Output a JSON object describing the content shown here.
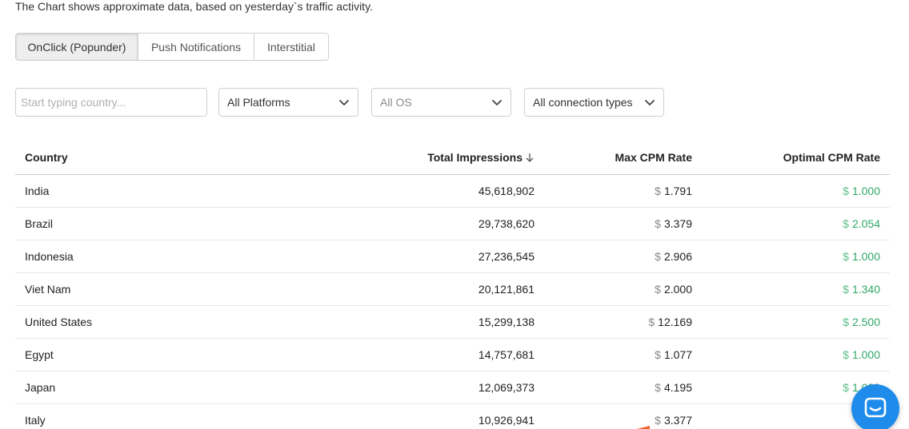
{
  "note": "The Chart shows approximate data, based on yesterday`s traffic activity.",
  "tabs": [
    {
      "label": "OnClick (Popunder)",
      "active": true
    },
    {
      "label": "Push Notifications",
      "active": false
    },
    {
      "label": "Interstitial",
      "active": false
    }
  ],
  "filters": {
    "country_placeholder": "Start typing country...",
    "platform": "All Platforms",
    "os": "All OS",
    "connection": "All connection types"
  },
  "table": {
    "headers": {
      "country": "Country",
      "impressions": "Total Impressions",
      "max_cpm": "Max CPM Rate",
      "optimal_cpm": "Optimal CPM Rate"
    },
    "currency": "$",
    "rows": [
      {
        "country": "India",
        "impressions": "45,618,902",
        "max_cpm": "1.791",
        "optimal_cpm": "1.000"
      },
      {
        "country": "Brazil",
        "impressions": "29,738,620",
        "max_cpm": "3.379",
        "optimal_cpm": "2.054"
      },
      {
        "country": "Indonesia",
        "impressions": "27,236,545",
        "max_cpm": "2.906",
        "optimal_cpm": "1.000"
      },
      {
        "country": "Viet Nam",
        "impressions": "20,121,861",
        "max_cpm": "2.000",
        "optimal_cpm": "1.340"
      },
      {
        "country": "United States",
        "impressions": "15,299,138",
        "max_cpm": "12.169",
        "optimal_cpm": "2.500"
      },
      {
        "country": "Egypt",
        "impressions": "14,757,681",
        "max_cpm": "1.077",
        "optimal_cpm": "1.000"
      },
      {
        "country": "Japan",
        "impressions": "12,069,373",
        "max_cpm": "4.195",
        "optimal_cpm": "1.000"
      },
      {
        "country": "Italy",
        "impressions": "10,926,941",
        "max_cpm": "3.377",
        "optimal_cpm": ""
      }
    ]
  },
  "colors": {
    "optimal_green": "#2fa868",
    "chat_blue": "#1f8ceb"
  },
  "icons": {
    "sort": "arrow-down-icon",
    "dropdown": "chevron-down-icon",
    "chat": "chat-bubble-icon"
  }
}
